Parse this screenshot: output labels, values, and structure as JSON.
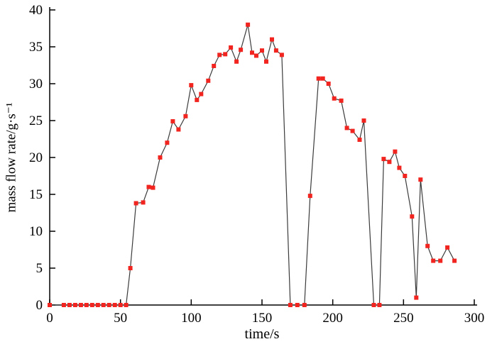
{
  "figure": {
    "background": "#ffffff",
    "axis_color": "#000000",
    "text_color": "#000000"
  },
  "chart_data": {
    "type": "line",
    "title": "",
    "xlabel": "time/s",
    "ylabel": "mass flow rate/g·s⁻¹",
    "xlim": [
      0,
      300
    ],
    "ylim": [
      0,
      40
    ],
    "xticks": [
      0,
      50,
      100,
      150,
      200,
      250,
      300
    ],
    "yticks": [
      0,
      5,
      10,
      15,
      20,
      25,
      30,
      35,
      40
    ],
    "grid": false,
    "legend": "none",
    "marker": {
      "shape": "square",
      "color": "#f2241f",
      "size": 6
    },
    "line": {
      "color": "#3b3b3b",
      "width": 1.2
    },
    "points": [
      [
        0,
        0
      ],
      [
        10,
        0
      ],
      [
        14,
        0
      ],
      [
        18,
        0
      ],
      [
        22,
        0
      ],
      [
        26,
        0
      ],
      [
        30,
        0
      ],
      [
        34,
        0
      ],
      [
        38,
        0
      ],
      [
        42,
        0
      ],
      [
        46,
        0
      ],
      [
        50,
        0
      ],
      [
        54,
        0
      ],
      [
        57,
        5
      ],
      [
        61,
        13.8
      ],
      [
        66,
        13.9
      ],
      [
        70,
        16
      ],
      [
        73,
        15.9
      ],
      [
        78,
        20
      ],
      [
        83,
        22
      ],
      [
        87,
        24.9
      ],
      [
        91,
        23.8
      ],
      [
        96,
        25.6
      ],
      [
        100,
        29.8
      ],
      [
        104,
        27.8
      ],
      [
        107,
        28.6
      ],
      [
        112,
        30.4
      ],
      [
        116,
        32.4
      ],
      [
        120,
        33.9
      ],
      [
        124,
        34
      ],
      [
        128,
        34.9
      ],
      [
        132,
        33
      ],
      [
        135,
        34.6
      ],
      [
        140,
        38
      ],
      [
        143,
        34.2
      ],
      [
        146,
        33.8
      ],
      [
        150,
        34.5
      ],
      [
        153,
        33
      ],
      [
        157,
        36
      ],
      [
        160,
        34.5
      ],
      [
        164,
        33.9
      ],
      [
        170,
        0
      ],
      [
        175,
        0
      ],
      [
        180,
        0
      ],
      [
        184,
        14.8
      ],
      [
        190,
        30.7
      ],
      [
        193,
        30.7
      ],
      [
        197,
        30
      ],
      [
        201,
        28
      ],
      [
        206,
        27.7
      ],
      [
        210,
        24
      ],
      [
        214,
        23.6
      ],
      [
        219,
        22.4
      ],
      [
        222,
        25
      ],
      [
        229,
        0
      ],
      [
        233,
        0
      ],
      [
        236,
        19.8
      ],
      [
        240,
        19.4
      ],
      [
        244,
        20.8
      ],
      [
        247,
        18.6
      ],
      [
        251,
        17.5
      ],
      [
        256,
        12
      ],
      [
        259,
        1
      ],
      [
        262,
        17
      ],
      [
        267,
        8
      ],
      [
        271,
        6
      ],
      [
        276,
        6
      ],
      [
        281,
        7.8
      ],
      [
        286,
        6
      ]
    ]
  }
}
